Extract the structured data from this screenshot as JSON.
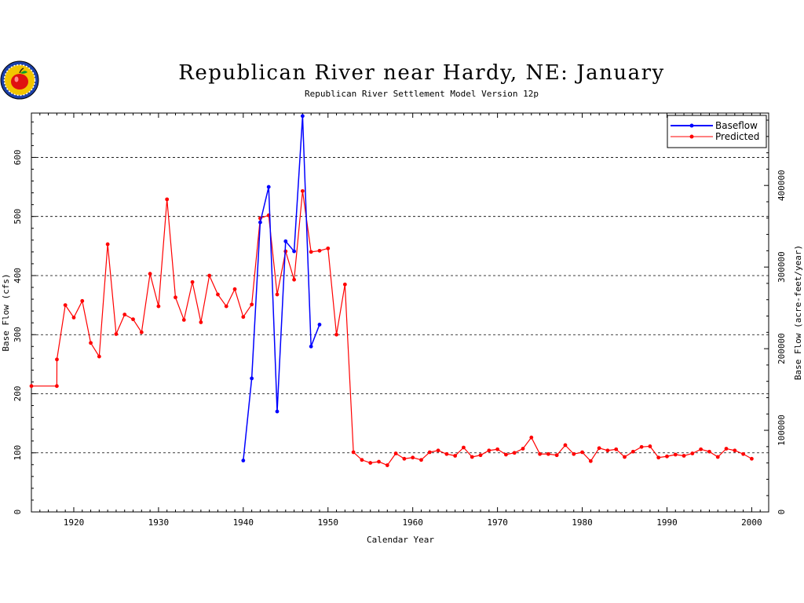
{
  "chart_data": {
    "type": "line",
    "title": "Republican River near Hardy, NE: January",
    "subtitle": "Republican River Settlement Model Version 12p",
    "xlabel": "Calendar Year",
    "ylabel": "Base Flow (cfs)",
    "ylabel_right": "Base Flow (acre-feet/year)",
    "xlim": [
      1915,
      2002
    ],
    "ylim": [
      0,
      675
    ],
    "ylim_right_note": "cfs converted to acre-feet/year",
    "grid": "horizontal dashed",
    "legend_position": "top-right",
    "x_ticks": [
      1920,
      1930,
      1940,
      1950,
      1960,
      1970,
      1980,
      1990,
      2000
    ],
    "y_ticks": [
      0,
      100,
      200,
      300,
      400,
      500,
      600
    ],
    "y_ticks_right": [
      0,
      100000,
      200000,
      300000,
      400000
    ],
    "series": [
      {
        "name": "Baseflow",
        "color": "#0000ff",
        "x": [
          1940,
          1941,
          1942,
          1943,
          1944,
          1945,
          1946,
          1947,
          1948,
          1949
        ],
        "y": [
          87,
          226,
          490,
          550,
          170,
          458,
          441,
          670,
          280,
          317
        ]
      },
      {
        "name": "Predicted",
        "color": "#ff0000",
        "x": [
          1915,
          1918,
          1918.01,
          1919,
          1920,
          1921,
          1922,
          1923,
          1924,
          1925,
          1926,
          1927,
          1928,
          1929,
          1930,
          1931,
          1932,
          1933,
          1934,
          1935,
          1936,
          1937,
          1938,
          1939,
          1940,
          1941,
          1942,
          1943,
          1944,
          1945,
          1946,
          1947,
          1948,
          1949,
          1950,
          1951,
          1952,
          1953,
          1954,
          1955,
          1956,
          1957,
          1958,
          1959,
          1960,
          1961,
          1962,
          1963,
          1964,
          1965,
          1966,
          1967,
          1968,
          1969,
          1970,
          1971,
          1972,
          1973,
          1974,
          1975,
          1976,
          1977,
          1978,
          1979,
          1980,
          1981,
          1982,
          1983,
          1984,
          1985,
          1986,
          1987,
          1988,
          1989,
          1990,
          1991,
          1992,
          1993,
          1994,
          1995,
          1996,
          1997,
          1998,
          1999,
          2000
        ],
        "y": [
          213,
          213,
          258,
          350,
          329,
          357,
          286,
          263,
          453,
          301,
          334,
          326,
          304,
          403,
          348,
          529,
          363,
          325,
          389,
          321,
          400,
          368,
          348,
          377,
          330,
          351,
          497,
          502,
          368,
          441,
          393,
          543,
          440,
          442,
          446,
          300,
          385,
          101,
          88,
          83,
          85,
          79,
          99,
          90,
          92,
          88,
          101,
          104,
          98,
          95,
          109,
          93,
          96,
          104,
          106,
          97,
          100,
          107,
          126,
          98,
          98,
          96,
          113,
          98,
          101,
          86,
          108,
          104,
          106,
          93,
          102,
          110,
          111,
          92,
          94,
          97,
          95,
          99,
          106,
          102,
          93,
          107,
          104,
          98,
          90
        ]
      }
    ]
  }
}
